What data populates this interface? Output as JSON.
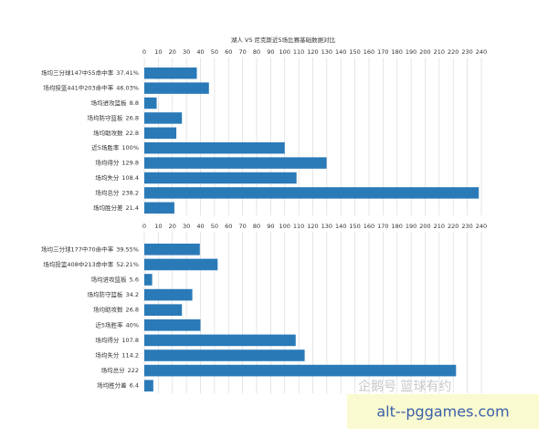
{
  "chart_data": [
    {
      "type": "hbar",
      "title": "湖人 VS 尼克斯近5场比赛基础数据对比",
      "categories": [
        "场均三分球147中55命中率",
        "场均投篮441中203命中率",
        "场均进攻篮板",
        "场均防守篮板",
        "场均助攻数",
        "近5场胜率",
        "场均得分",
        "场均失分",
        "场均总分",
        "场均胜分差"
      ],
      "values": [
        37.41,
        46.03,
        8.8,
        26.8,
        22.8,
        100,
        129.8,
        108.4,
        238.2,
        21.4
      ],
      "value_labels": [
        "37.41%",
        "46.03%",
        "8.8",
        "26.8",
        "22.8",
        "100%",
        "129.8",
        "108.4",
        "238.2",
        "21.4"
      ],
      "color": "#2a7ab8",
      "xlim": [
        0,
        240
      ],
      "xticks": [
        0,
        10,
        20,
        30,
        40,
        50,
        60,
        70,
        80,
        90,
        100,
        110,
        120,
        130,
        140,
        150,
        160,
        170,
        180,
        190,
        200,
        210,
        220,
        230,
        240
      ],
      "grid": true
    },
    {
      "type": "hbar",
      "categories": [
        "场均三分球177中70命中率",
        "场均投篮408中213命中率",
        "场均进攻篮板",
        "场均防守篮板",
        "场均助攻数",
        "近5场胜率",
        "场均得分",
        "场均失分",
        "场均总分",
        "场均胜分差"
      ],
      "values": [
        39.55,
        52.21,
        5.6,
        34.2,
        26.8,
        40,
        107.8,
        114.2,
        222,
        6.4
      ],
      "value_labels": [
        "39.55%",
        "52.21%",
        "5.6",
        "34.2",
        "26.8",
        "40%",
        "107.8",
        "114.2",
        "222",
        "6.4"
      ],
      "color": "#2a7ab8",
      "xlim": [
        0,
        240
      ],
      "xticks": [
        0,
        10,
        20,
        30,
        40,
        50,
        60,
        70,
        80,
        90,
        100,
        110,
        120,
        130,
        140,
        150,
        160,
        170,
        180,
        190,
        200,
        210,
        220,
        230,
        240
      ],
      "grid": true
    }
  ],
  "watermark": "企鹅号 篮球有约",
  "banner": "alt--pggames.com"
}
